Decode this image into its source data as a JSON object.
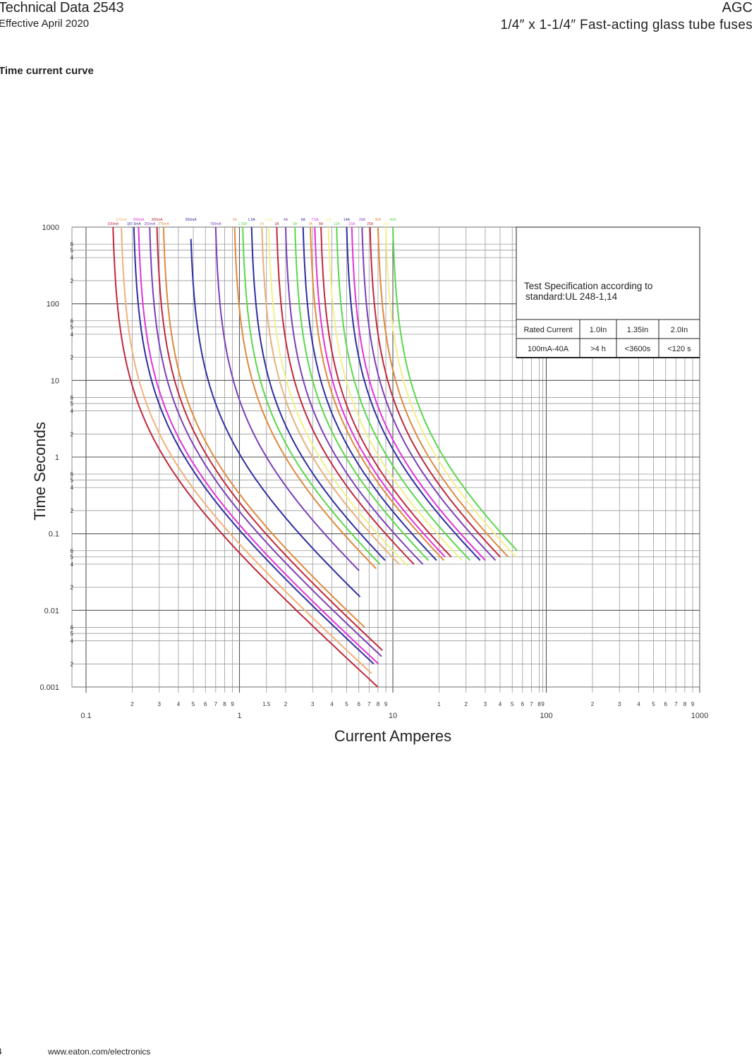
{
  "header": {
    "doc_title": "Technical Data",
    "doc_number": "2543",
    "effective": "Effective April 2020",
    "product_code": "AGC",
    "product_desc": "1/4″ x 1-1/4″ Fast-acting glass tube fuses"
  },
  "section_title": "Time current curve",
  "footer": {
    "page": "4",
    "url": "www.eaton.com/electronics"
  },
  "chart_data": {
    "type": "line",
    "xlabel": "Current Amperes",
    "ylabel": "Time Seconds",
    "x_scale": "log",
    "y_scale": "log",
    "xlim": [
      0.1,
      1000
    ],
    "ylim": [
      0.001,
      1000
    ],
    "grid": true,
    "x_major_ticks": [
      {
        "v": 0.1,
        "label": "0.1"
      },
      {
        "v": 1,
        "label": "1"
      },
      {
        "v": 10,
        "label": "10"
      },
      {
        "v": 100,
        "label": "100"
      },
      {
        "v": 1000,
        "label": "1000"
      }
    ],
    "x_minor_ticks": [
      {
        "v": 0.2,
        "label": "2"
      },
      {
        "v": 0.3,
        "label": "3"
      },
      {
        "v": 0.4,
        "label": "4"
      },
      {
        "v": 0.5,
        "label": "5"
      },
      {
        "v": 0.6,
        "label": "6"
      },
      {
        "v": 0.7,
        "label": "7"
      },
      {
        "v": 0.8,
        "label": "8"
      },
      {
        "v": 0.9,
        "label": "9"
      },
      {
        "v": 1.5,
        "label": "1.5"
      },
      {
        "v": 2,
        "label": "2"
      },
      {
        "v": 3,
        "label": "3"
      },
      {
        "v": 4,
        "label": "4"
      },
      {
        "v": 5,
        "label": "5"
      },
      {
        "v": 6,
        "label": "6"
      },
      {
        "v": 7,
        "label": "7"
      },
      {
        "v": 8,
        "label": "8"
      },
      {
        "v": 9,
        "label": "9"
      },
      {
        "v": 20,
        "label": "1"
      },
      {
        "v": 30,
        "label": "2"
      },
      {
        "v": 40,
        "label": "3"
      },
      {
        "v": 50,
        "label": "4"
      },
      {
        "v": 60,
        "label": "5"
      },
      {
        "v": 70,
        "label": "6"
      },
      {
        "v": 80,
        "label": "7"
      },
      {
        "v": 90,
        "label": "8"
      },
      {
        "v": 95,
        "label": "9"
      },
      {
        "v": 200,
        "label": "2"
      },
      {
        "v": 300,
        "label": "3"
      },
      {
        "v": 400,
        "label": "4"
      },
      {
        "v": 500,
        "label": "5"
      },
      {
        "v": 600,
        "label": "6"
      },
      {
        "v": 700,
        "label": "7"
      },
      {
        "v": 800,
        "label": "8"
      },
      {
        "v": 900,
        "label": "9"
      }
    ],
    "y_major_ticks": [
      {
        "v": 1000,
        "label": "1000"
      },
      {
        "v": 100,
        "label": "100"
      },
      {
        "v": 10,
        "label": "10"
      },
      {
        "v": 1,
        "label": "1"
      },
      {
        "v": 0.1,
        "label": "0.1"
      },
      {
        "v": 0.01,
        "label": "0.01"
      },
      {
        "v": 0.001,
        "label": "0.001"
      }
    ],
    "y_minor_ticks": [
      {
        "v": 500,
        "label": "5"
      },
      {
        "v": 600,
        "label": "6"
      },
      {
        "v": 400,
        "label": "4"
      },
      {
        "v": 200,
        "label": "2"
      },
      {
        "v": 50,
        "label": "5"
      },
      {
        "v": 60,
        "label": "6"
      },
      {
        "v": 40,
        "label": "4"
      },
      {
        "v": 20,
        "label": "2"
      },
      {
        "v": 5,
        "label": "5"
      },
      {
        "v": 6,
        "label": "6"
      },
      {
        "v": 4,
        "label": "4"
      },
      {
        "v": 2,
        "label": "2"
      },
      {
        "v": 0.5,
        "label": "5"
      },
      {
        "v": 0.6,
        "label": "6"
      },
      {
        "v": 0.4,
        "label": "4"
      },
      {
        "v": 0.2,
        "label": "2"
      },
      {
        "v": 0.05,
        "label": "5"
      },
      {
        "v": 0.06,
        "label": "6"
      },
      {
        "v": 0.04,
        "label": "4"
      },
      {
        "v": 0.02,
        "label": "2"
      },
      {
        "v": 0.005,
        "label": "5"
      },
      {
        "v": 0.006,
        "label": "6"
      },
      {
        "v": 0.004,
        "label": "4"
      },
      {
        "v": 0.002,
        "label": "2"
      }
    ],
    "series": [
      {
        "name": "100mA",
        "color": "#c0283c",
        "tmax": 0.15,
        "start": 1000,
        "end": 0.001
      },
      {
        "name": "125mA",
        "color": "#f2b07a",
        "tmax": 0.17,
        "start": 1000,
        "end": 0.0015
      },
      {
        "name": "187.5mA",
        "color": "#2f2ea0",
        "tmax": 0.205,
        "start": 1000,
        "end": 0.002
      },
      {
        "name": "200mA",
        "color": "#e033d8",
        "tmax": 0.22,
        "start": 1000,
        "end": 0.002
      },
      {
        "name": "250mA",
        "color": "#7a3fb8",
        "tmax": 0.26,
        "start": 1000,
        "end": 0.0025
      },
      {
        "name": "300mA",
        "color": "#c0283c",
        "tmax": 0.29,
        "start": 1000,
        "end": 0.003
      },
      {
        "name": "375mA",
        "color": "#dd8a3c",
        "tmax": 0.32,
        "start": 1000,
        "end": 0.006
      },
      {
        "name": "500mA",
        "color": "#2f2ea0",
        "tmax": 0.48,
        "start": 700,
        "end": 0.015
      },
      {
        "name": "750mA",
        "color": "#7a3fb8",
        "tmax": 0.7,
        "start": 1000,
        "end": 0.033
      },
      {
        "name": "1A",
        "color": "#dd8a3c",
        "tmax": 0.93,
        "start": 1000,
        "end": 0.035
      },
      {
        "name": "1.25A",
        "color": "#5ad84a",
        "tmax": 1.05,
        "start": 1000,
        "end": 0.04
      },
      {
        "name": "1.5A",
        "color": "#2f2ea0",
        "tmax": 1.2,
        "start": 1000,
        "end": 0.045
      },
      {
        "name": "2A",
        "color": "#e8b07a",
        "tmax": 1.4,
        "start": 1000,
        "end": 0.04
      },
      {
        "name": "2.5A",
        "color": "#f3ef8a",
        "tmax": 1.55,
        "start": 1000,
        "end": 0.038
      },
      {
        "name": "3A",
        "color": "#c0283c",
        "tmax": 1.75,
        "start": 1000,
        "end": 0.04
      },
      {
        "name": "4A",
        "color": "#7a3fb8",
        "tmax": 2.0,
        "start": 1000,
        "end": 0.04
      },
      {
        "name": "5A",
        "color": "#5ad84a",
        "tmax": 2.3,
        "start": 1000,
        "end": 0.045
      },
      {
        "name": "6A",
        "color": "#2f2ea0",
        "tmax": 2.6,
        "start": 1000,
        "end": 0.045
      },
      {
        "name": "7A",
        "color": "#dd8a3c",
        "tmax": 2.9,
        "start": 1000,
        "end": 0.045
      },
      {
        "name": "7.5A",
        "color": "#e033d8",
        "tmax": 3.1,
        "start": 1000,
        "end": 0.05
      },
      {
        "name": "8A",
        "color": "#c0283c",
        "tmax": 3.4,
        "start": 1000,
        "end": 0.05
      },
      {
        "name": "10A",
        "color": "#f3ef8a",
        "tmax": 3.8,
        "start": 1000,
        "end": 0.045
      },
      {
        "name": "12A",
        "color": "#5ad84a",
        "tmax": 4.3,
        "start": 1000,
        "end": 0.045
      },
      {
        "name": "14A",
        "color": "#2f2ea0",
        "tmax": 5.0,
        "start": 1000,
        "end": 0.045
      },
      {
        "name": "15A",
        "color": "#e033d8",
        "tmax": 5.4,
        "start": 1000,
        "end": 0.045
      },
      {
        "name": "20A",
        "color": "#7a3fb8",
        "tmax": 6.3,
        "start": 1000,
        "end": 0.045
      },
      {
        "name": "25A",
        "color": "#c0283c",
        "tmax": 7.1,
        "start": 1000,
        "end": 0.05
      },
      {
        "name": "30A",
        "color": "#dd8a3c",
        "tmax": 8.0,
        "start": 1000,
        "end": 0.05
      },
      {
        "name": "35A",
        "color": "#f3ef8a",
        "tmax": 9.0,
        "start": 1000,
        "end": 0.05
      },
      {
        "name": "40A",
        "color": "#5ad84a",
        "tmax": 10.0,
        "start": 1000,
        "end": 0.06
      }
    ]
  },
  "spec_box": {
    "title": "Test Specification according to standard:UL 248-1,14",
    "columns": [
      "Rated Current",
      "1.0In",
      "1.35In",
      "2.0In"
    ],
    "row": [
      "100mA-40A",
      ">4 h",
      "<3600s",
      "<120 s"
    ]
  }
}
